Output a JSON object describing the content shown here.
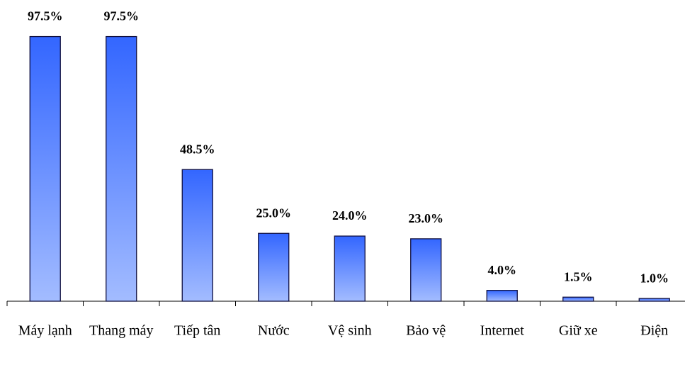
{
  "chart_data": {
    "type": "bar",
    "categories": [
      "Máy lạnh",
      "Thang máy",
      "Tiếp tân",
      "Nước",
      "Vệ sinh",
      "Bảo vệ",
      "Internet",
      "Giữ xe",
      "Điện"
    ],
    "values": [
      97.5,
      97.5,
      48.5,
      25.0,
      24.0,
      23.0,
      4.0,
      1.5,
      1.0
    ],
    "value_labels": [
      "97.5%",
      "97.5%",
      "48.5%",
      "25.0%",
      "24.0%",
      "23.0%",
      "4.0%",
      "1.5%",
      "1.0%"
    ],
    "color": "#3366ff"
  }
}
